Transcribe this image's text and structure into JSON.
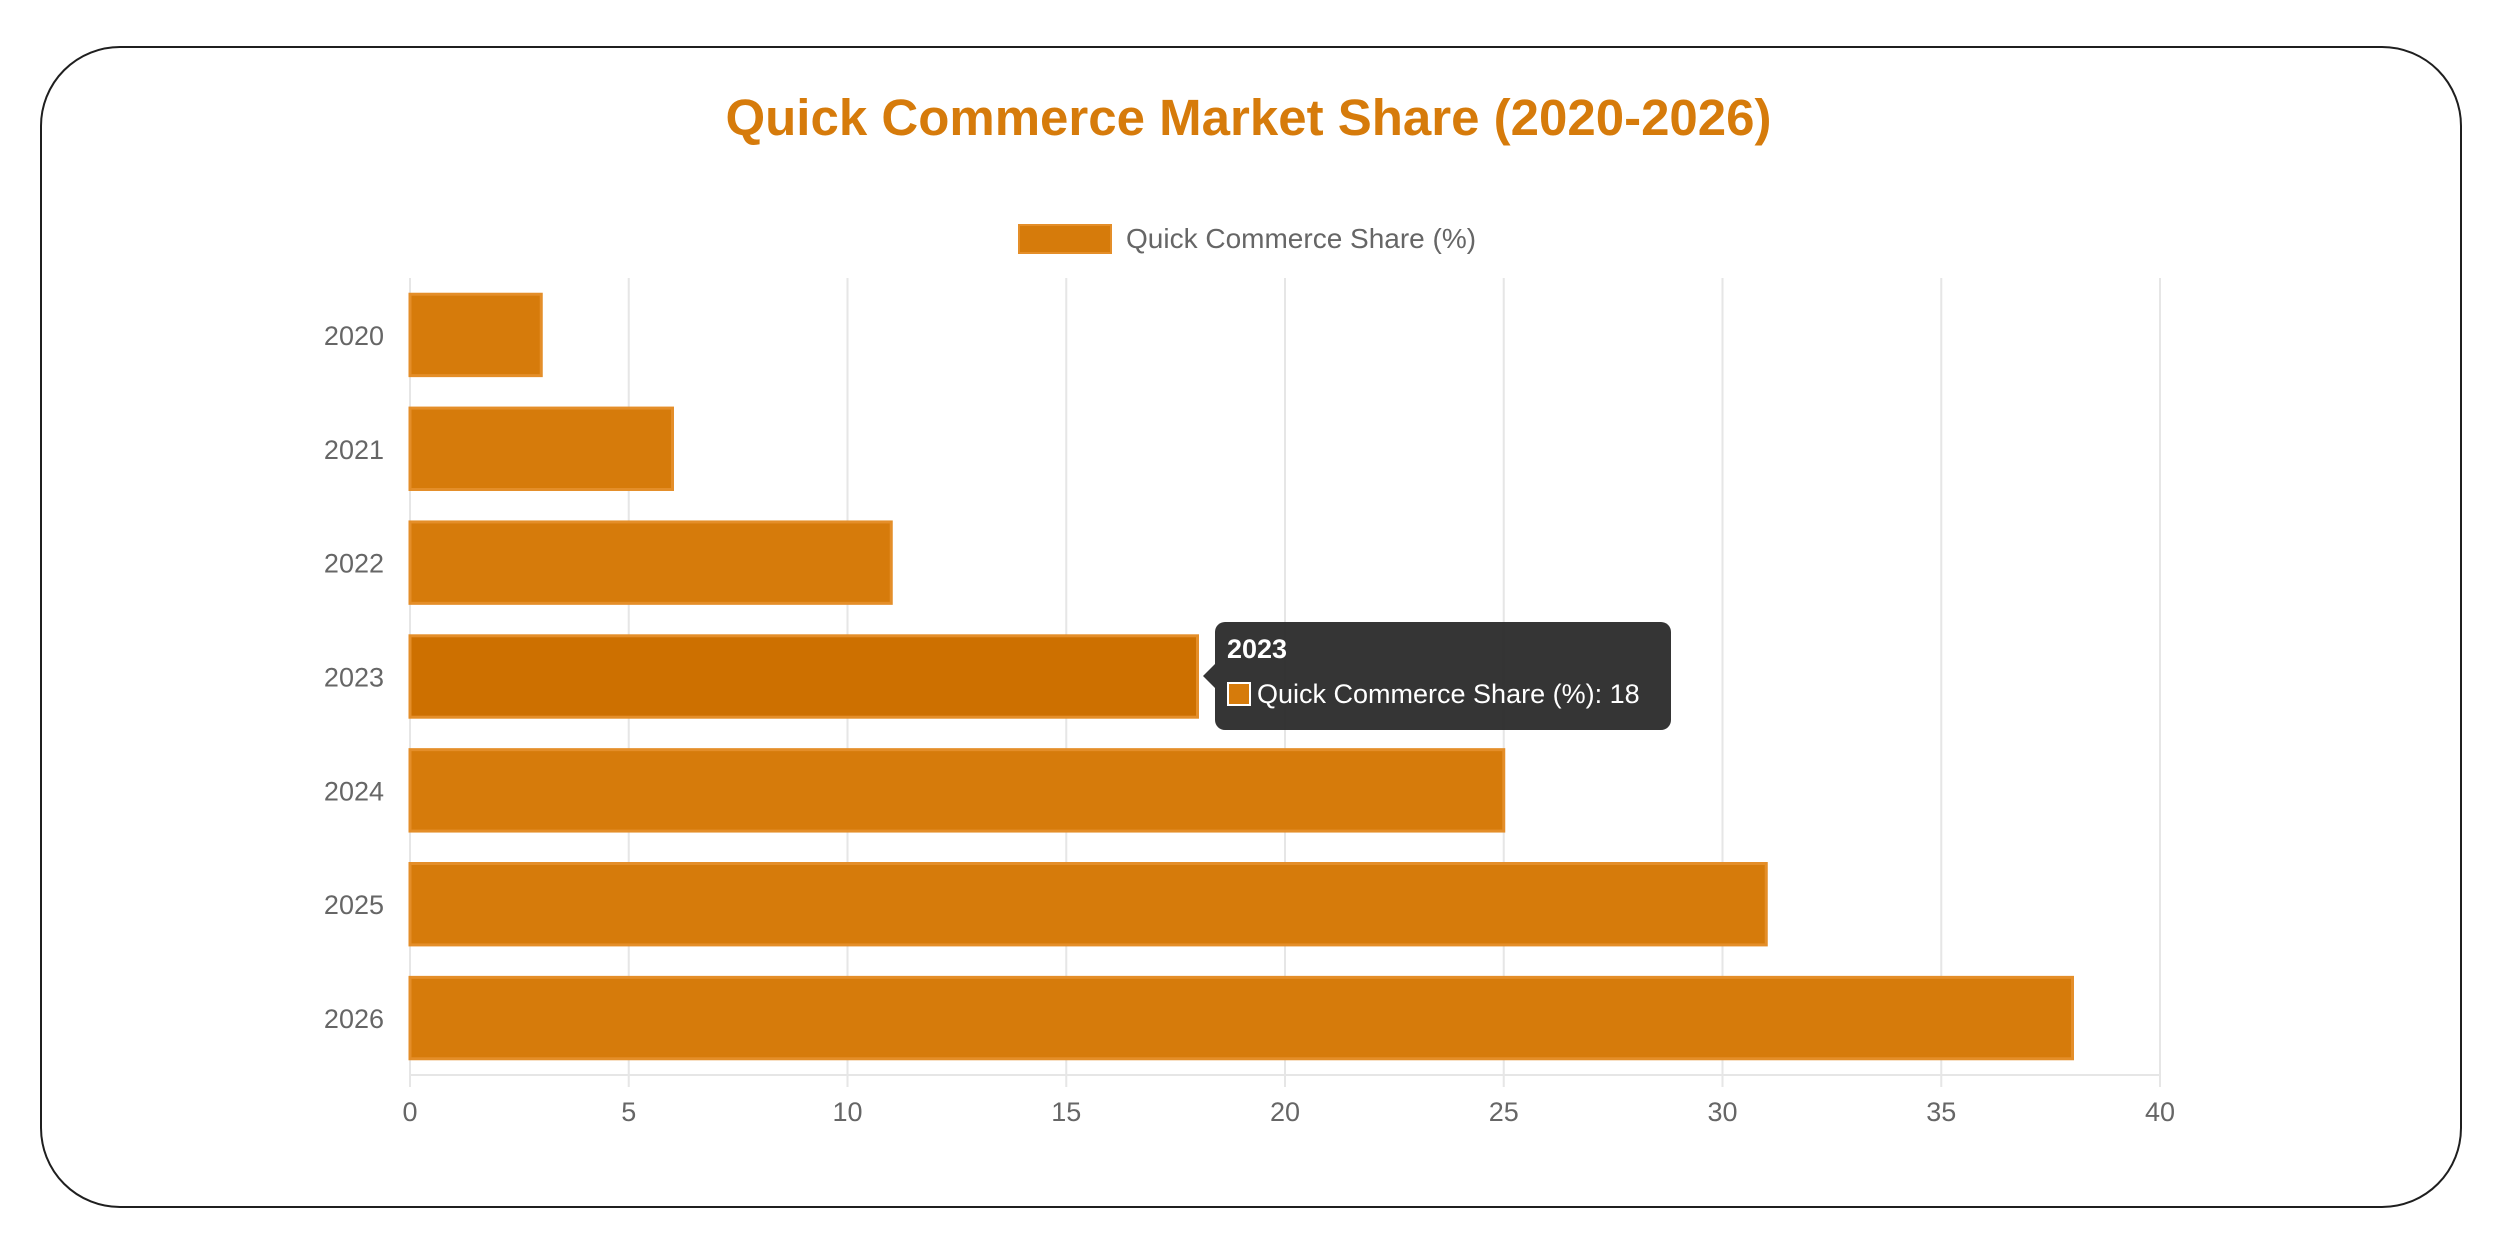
{
  "colors": {
    "bar": "#d67b0b",
    "bar_active": "#cd7000",
    "bar_border": "#e48e29",
    "title": "#d67b0b",
    "grid": "#e6e6e6",
    "axis_text": "#666666"
  },
  "chart_data": {
    "type": "bar",
    "orientation": "horizontal",
    "title": "Quick Commerce Market Share (2020-2026)",
    "categories": [
      "2020",
      "2021",
      "2022",
      "2023",
      "2024",
      "2025",
      "2026"
    ],
    "series": [
      {
        "name": "Quick Commerce Share (%)",
        "values": [
          3,
          6,
          11,
          18,
          25,
          31,
          38
        ]
      }
    ],
    "xlim": [
      0,
      40
    ],
    "xticks": [
      "0",
      "5",
      "10",
      "15",
      "20",
      "25",
      "30",
      "35",
      "40"
    ],
    "grid": true,
    "legend": "top-center",
    "highlighted_index": 3
  },
  "tooltip": {
    "title": "2023",
    "label": "Quick Commerce Share (%): 18"
  }
}
